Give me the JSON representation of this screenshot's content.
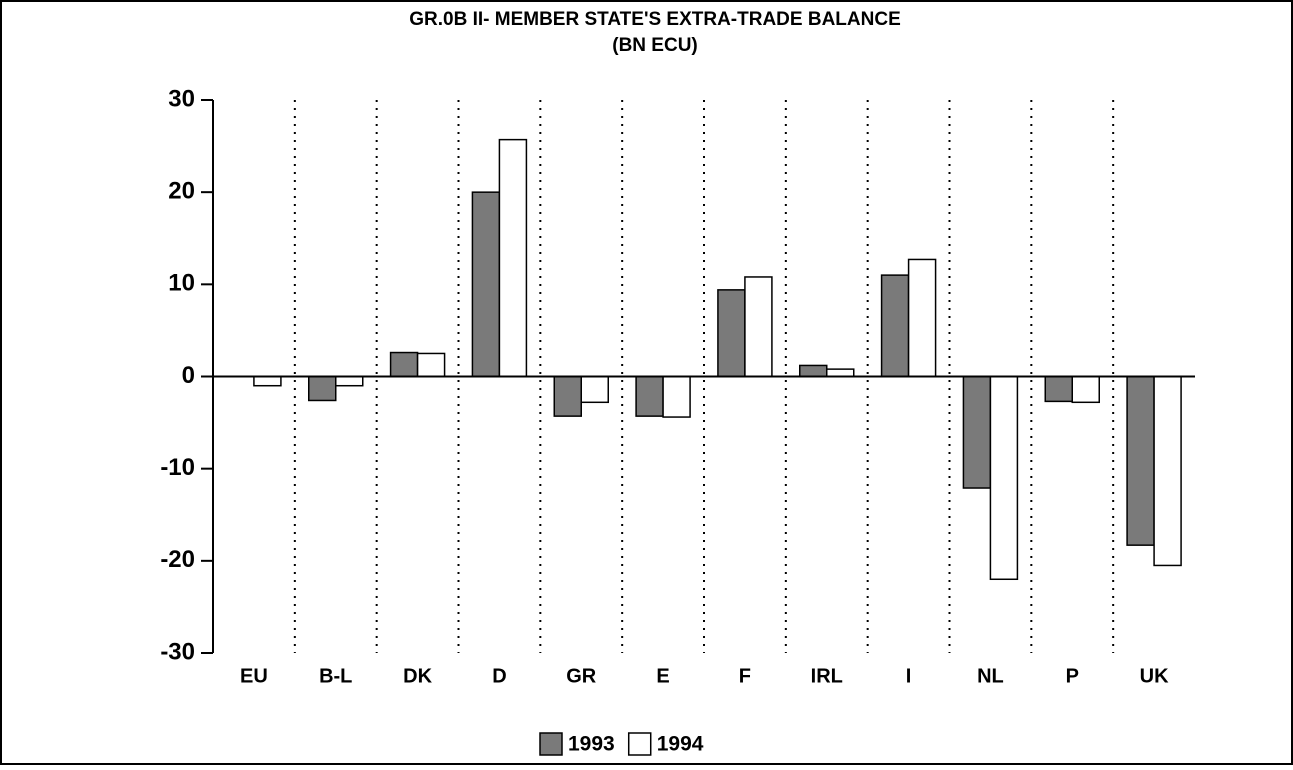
{
  "chart_data": {
    "type": "bar",
    "title": "GR.0B II- MEMBER STATE'S EXTRA-TRADE BALANCE",
    "subtitle": "(BN ECU)",
    "categories": [
      "EU",
      "B-L",
      "DK",
      "D",
      "GR",
      "E",
      "F",
      "IRL",
      "I",
      "NL",
      "P",
      "UK"
    ],
    "series": [
      {
        "name": "1993",
        "color": "#7a7a7a",
        "values": [
          0,
          -2.6,
          2.6,
          20.0,
          -4.3,
          -4.3,
          9.4,
          1.2,
          11.0,
          -12.1,
          -2.7,
          -18.3
        ]
      },
      {
        "name": "1994",
        "color": "#ffffff",
        "values": [
          -1.0,
          -1.0,
          2.5,
          25.7,
          -2.8,
          -4.4,
          10.8,
          0.8,
          12.7,
          -22.0,
          -2.8,
          -20.5
        ]
      }
    ],
    "ylim": [
      -30,
      30
    ],
    "yticks": [
      -30,
      -20,
      -10,
      0,
      10,
      20,
      30
    ],
    "legend": "bottom"
  }
}
